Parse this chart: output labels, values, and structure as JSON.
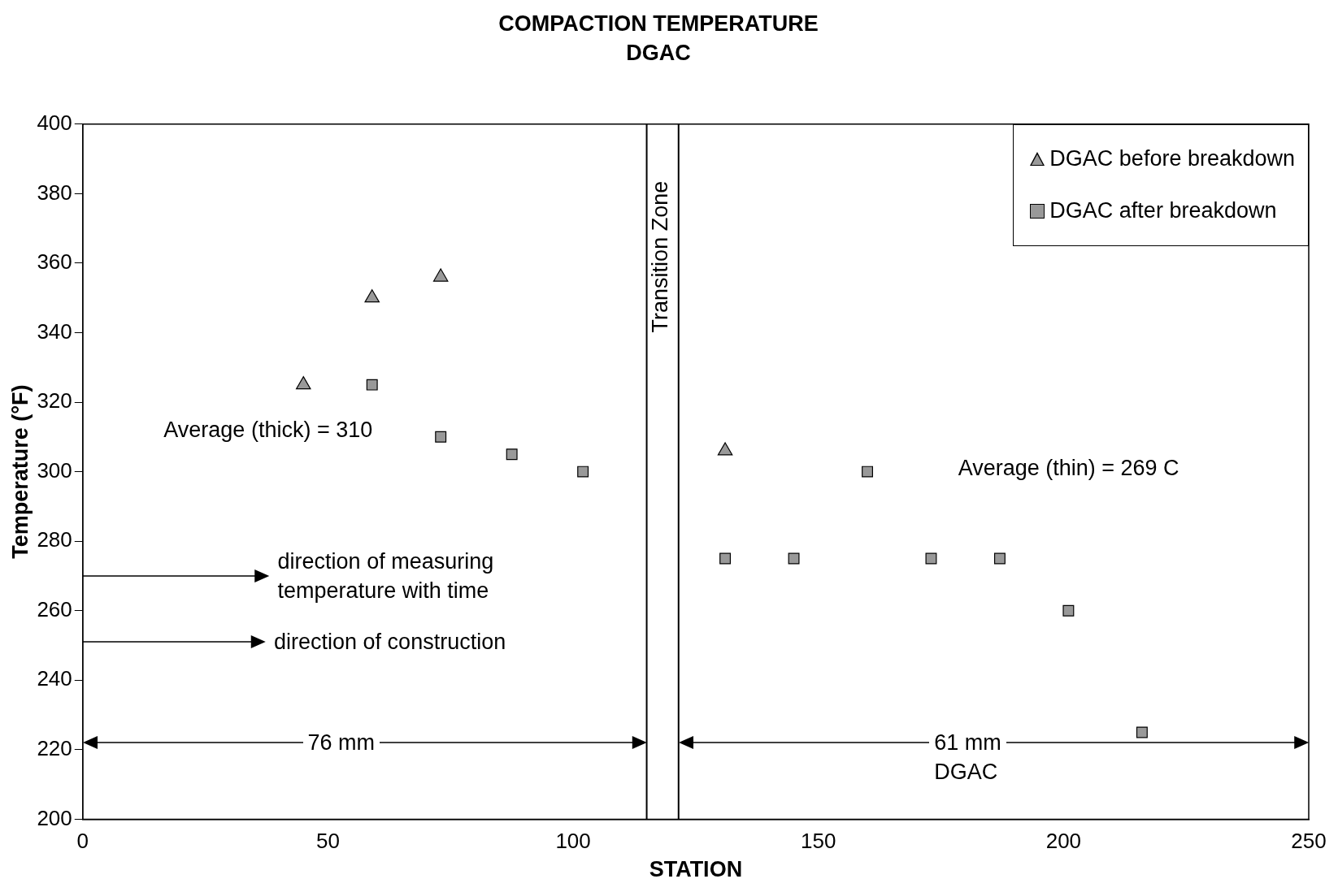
{
  "chart_data": {
    "type": "scatter",
    "title": "COMPACTION TEMPERATURE",
    "subtitle": "DGAC",
    "xlabel": "STATION",
    "ylabel": "Temperature (°F)",
    "series": [
      {
        "name": "DGAC before breakdown",
        "color": "#999999",
        "marker": "triangle",
        "x": [
          45,
          59,
          73,
          131
        ],
        "values": [
          325,
          350,
          356,
          306
        ]
      },
      {
        "name": "DGAC after breakdown",
        "color": "#999999",
        "marker": "square",
        "x": [
          59,
          73,
          87.5,
          102,
          131,
          145,
          160,
          173,
          187,
          201,
          216
        ],
        "values": [
          325,
          310,
          305,
          300,
          275,
          275,
          300,
          275,
          275,
          260,
          225
        ]
      }
    ],
    "xlim": [
      0,
      250
    ],
    "xticks": [
      0,
      50,
      100,
      150,
      200,
      250
    ],
    "ylim": [
      200,
      400
    ],
    "yticks": [
      200,
      220,
      240,
      260,
      280,
      300,
      320,
      340,
      360,
      380,
      400
    ],
    "grid": false,
    "legend": "top right",
    "ref_lines": [
      {
        "axis": "x",
        "value": 115,
        "label": "Transition Zone"
      },
      {
        "axis": "x",
        "value": 121.5
      }
    ],
    "annotations": [
      "Average (thick) = 310",
      "Average (thin) = 269 C",
      "direction of measuring\ntemperature with time",
      "direction of construction",
      "76 mm",
      "61 mm\nDGAC"
    ]
  }
}
